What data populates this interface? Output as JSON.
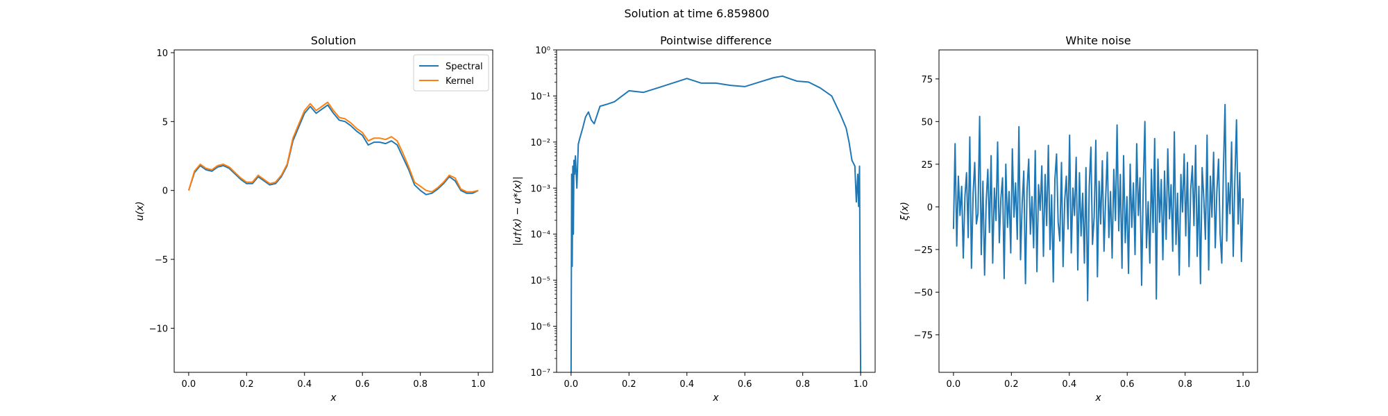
{
  "figure": {
    "suptitle": "Solution at time 6.859800"
  },
  "colors": {
    "spectral": "#1f77b4",
    "kernel": "#ff7f0e",
    "noise": "#1f77b4",
    "diff": "#1f77b4"
  },
  "chart_data": [
    {
      "type": "line",
      "title": "Solution",
      "xlabel": "x",
      "ylabel": "u(x)",
      "xlim": [
        -0.05,
        1.05
      ],
      "ylim": [
        -13.2,
        10.2
      ],
      "xticks": [
        0.0,
        0.2,
        0.4,
        0.6,
        0.8,
        1.0
      ],
      "xtick_labels": [
        "0.0",
        "0.2",
        "0.4",
        "0.6",
        "0.8",
        "1.0"
      ],
      "yticks": [
        10,
        5,
        0,
        -5,
        -10
      ],
      "ytick_labels": [
        "10",
        "5",
        "0",
        "−5",
        "−10"
      ],
      "legend": {
        "placement": "top-right",
        "entries": [
          "Spectral",
          "Kernel"
        ]
      },
      "x": [
        0.0,
        0.02,
        0.04,
        0.06,
        0.08,
        0.1,
        0.12,
        0.14,
        0.16,
        0.18,
        0.2,
        0.22,
        0.24,
        0.26,
        0.28,
        0.3,
        0.32,
        0.34,
        0.36,
        0.38,
        0.4,
        0.42,
        0.44,
        0.46,
        0.48,
        0.5,
        0.52,
        0.54,
        0.56,
        0.58,
        0.6,
        0.62,
        0.64,
        0.66,
        0.68,
        0.7,
        0.72,
        0.74,
        0.76,
        0.78,
        0.8,
        0.82,
        0.84,
        0.86,
        0.88,
        0.9,
        0.92,
        0.94,
        0.96,
        0.98,
        1.0
      ],
      "series": [
        {
          "name": "Spectral",
          "values": [
            0.0,
            1.3,
            1.8,
            1.5,
            1.4,
            1.7,
            1.8,
            1.6,
            1.2,
            0.8,
            0.5,
            0.5,
            1.0,
            0.7,
            0.4,
            0.5,
            1.0,
            1.8,
            3.6,
            4.6,
            5.6,
            6.1,
            5.6,
            5.9,
            6.2,
            5.6,
            5.1,
            5.0,
            4.7,
            4.3,
            4.0,
            3.3,
            3.5,
            3.5,
            3.4,
            3.6,
            3.3,
            2.4,
            1.5,
            0.4,
            0.0,
            -0.3,
            -0.2,
            0.1,
            0.5,
            1.0,
            0.7,
            0.0,
            -0.2,
            -0.2,
            0.0
          ]
        },
        {
          "name": "Kernel",
          "values": [
            0.0,
            1.4,
            1.9,
            1.6,
            1.5,
            1.8,
            1.9,
            1.7,
            1.3,
            0.9,
            0.6,
            0.6,
            1.1,
            0.8,
            0.5,
            0.6,
            1.1,
            1.9,
            3.8,
            4.8,
            5.8,
            6.3,
            5.8,
            6.1,
            6.4,
            5.8,
            5.3,
            5.2,
            4.9,
            4.5,
            4.2,
            3.6,
            3.8,
            3.8,
            3.7,
            3.9,
            3.6,
            2.7,
            1.7,
            0.6,
            0.3,
            0.0,
            -0.1,
            0.2,
            0.6,
            1.1,
            0.9,
            0.1,
            -0.1,
            -0.1,
            0.0
          ]
        }
      ]
    },
    {
      "type": "line",
      "title": "Pointwise difference",
      "xlabel": "x",
      "ylabel": "|u†(x) − u*(x)|",
      "log_y": true,
      "xlim": [
        -0.05,
        1.05
      ],
      "ylim": [
        1e-07,
        1
      ],
      "xticks": [
        0.0,
        0.2,
        0.4,
        0.6,
        0.8,
        1.0
      ],
      "xtick_labels": [
        "0.0",
        "0.2",
        "0.4",
        "0.6",
        "0.8",
        "1.0"
      ],
      "yticks": [
        1,
        0.1,
        0.01,
        0.001,
        0.0001,
        1e-05,
        1e-06,
        1e-07
      ],
      "ytick_labels": [
        "10⁰",
        "10⁻¹",
        "10⁻²",
        "10⁻³",
        "10⁻⁴",
        "10⁻⁵",
        "10⁻⁶",
        "10⁻⁷"
      ],
      "series": [
        {
          "name": "",
          "x": [
            0.0,
            0.002,
            0.004,
            0.006,
            0.008,
            0.01,
            0.012,
            0.015,
            0.02,
            0.025,
            0.03,
            0.04,
            0.05,
            0.06,
            0.07,
            0.08,
            0.1,
            0.12,
            0.15,
            0.2,
            0.25,
            0.3,
            0.35,
            0.4,
            0.45,
            0.5,
            0.55,
            0.6,
            0.65,
            0.7,
            0.73,
            0.78,
            0.82,
            0.86,
            0.9,
            0.93,
            0.95,
            0.96,
            0.97,
            0.98,
            0.985,
            0.99,
            0.993,
            0.996,
            0.998,
            1.0
          ],
          "values": [
            1e-07,
            0.002,
            2e-05,
            0.003,
            0.0001,
            0.004,
            0.002,
            0.005,
            0.001,
            0.009,
            0.012,
            0.02,
            0.035,
            0.045,
            0.03,
            0.025,
            0.06,
            0.065,
            0.075,
            0.13,
            0.12,
            0.15,
            0.19,
            0.24,
            0.19,
            0.19,
            0.17,
            0.16,
            0.2,
            0.25,
            0.27,
            0.21,
            0.2,
            0.15,
            0.1,
            0.04,
            0.02,
            0.01,
            0.004,
            0.003,
            0.0005,
            0.002,
            0.0004,
            0.003,
            1e-05,
            1e-07
          ]
        }
      ]
    },
    {
      "type": "line",
      "title": "White noise",
      "xlabel": "x",
      "ylabel": "ξ(x)",
      "xlim": [
        -0.05,
        1.05
      ],
      "ylim": [
        -97,
        92
      ],
      "xticks": [
        0.0,
        0.2,
        0.4,
        0.6,
        0.8,
        1.0
      ],
      "xtick_labels": [
        "0.0",
        "0.2",
        "0.4",
        "0.6",
        "0.8",
        "1.0"
      ],
      "yticks": [
        75,
        50,
        25,
        0,
        -25,
        -50,
        -75
      ],
      "ytick_labels": [
        "75",
        "50",
        "25",
        "0",
        "−25",
        "−50",
        "−75"
      ],
      "series": [
        {
          "name": "",
          "x_start": 0.0,
          "x_end": 1.0,
          "values": [
            -13,
            37,
            -23,
            18,
            -5,
            12,
            -30,
            6,
            20,
            -18,
            41,
            -36,
            8,
            26,
            -10,
            -4,
            53,
            -28,
            15,
            -40,
            3,
            22,
            -15,
            30,
            -33,
            11,
            -8,
            38,
            -21,
            5,
            17,
            -42,
            25,
            -12,
            9,
            -27,
            34,
            -6,
            14,
            -19,
            47,
            -31,
            2,
            21,
            -45,
            10,
            28,
            -16,
            6,
            -24,
            33,
            -38,
            13,
            -2,
            24,
            -29,
            19,
            -11,
            36,
            -25,
            7,
            -44,
            16,
            31,
            -9,
            -20,
            26,
            -35,
            4,
            18,
            -13,
            42,
            -27,
            11,
            -5,
            29,
            -37,
            20,
            -17,
            8,
            -33,
            23,
            -55,
            12,
            35,
            -22,
            -6,
            39,
            -41,
            15,
            -10,
            27,
            -26,
            4,
            32,
            -18,
            9,
            -30,
            22,
            -8,
            48,
            -14,
            19,
            -36,
            30,
            -21,
            6,
            -39,
            25,
            -12,
            14,
            -28,
            37,
            -5,
            17,
            -46,
            11,
            50,
            -24,
            3,
            -33,
            22,
            -15,
            40,
            -54,
            28,
            -9,
            16,
            -31,
            21,
            -19,
            34,
            -7,
            13,
            -26,
            44,
            -22,
            8,
            -40,
            19,
            -3,
            31,
            -17,
            26,
            -35,
            10,
            24,
            -11,
            36,
            -29,
            12,
            -45,
            23,
            5,
            -19,
            42,
            -37,
            18,
            -6,
            32,
            -24,
            9,
            28,
            -16,
            -33,
            21,
            60,
            -20,
            14,
            -4,
            38,
            -29,
            15,
            51,
            -10,
            20,
            -32,
            5
          ]
        }
      ]
    }
  ]
}
